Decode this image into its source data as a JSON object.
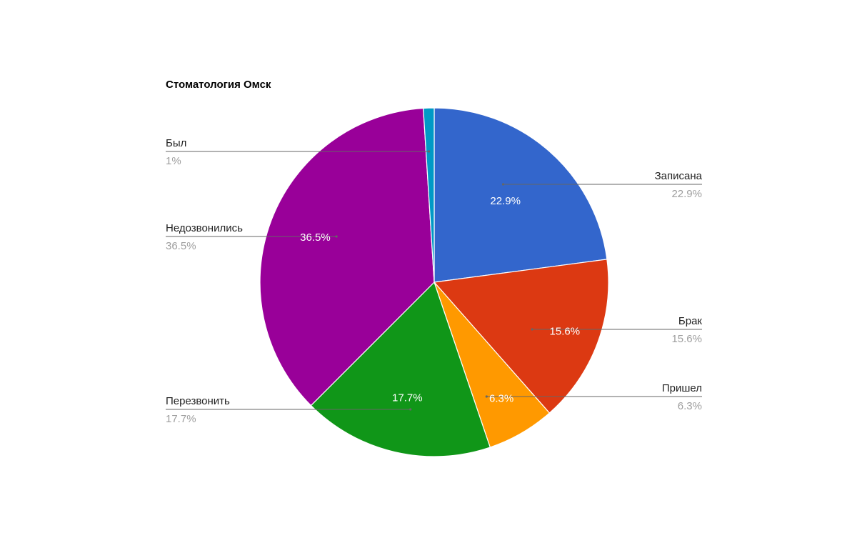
{
  "chart_data": {
    "type": "pie",
    "title": "Стоматология Омск",
    "slices": [
      {
        "name": "Записана",
        "value": 22.9,
        "label": "22.9%",
        "inside_label": "22.9%",
        "color": "#3366cc"
      },
      {
        "name": "Брак",
        "value": 15.6,
        "label": "15.6%",
        "inside_label": "15.6%",
        "color": "#dc3912"
      },
      {
        "name": "Пришел",
        "value": 6.3,
        "label": "6.3%",
        "inside_label": "6.3%",
        "color": "#ff9900"
      },
      {
        "name": "Перезвонить",
        "value": 17.7,
        "label": "17.7%",
        "inside_label": "17.7%",
        "color": "#109618"
      },
      {
        "name": "Недозвонились",
        "value": 36.5,
        "label": "36.5%",
        "inside_label": "36.5%",
        "color": "#990099"
      },
      {
        "name": "Был",
        "value": 1.0,
        "label": "1%",
        "inside_label": "",
        "color": "#0099c6"
      }
    ],
    "legend": "labeled-callouts"
  }
}
